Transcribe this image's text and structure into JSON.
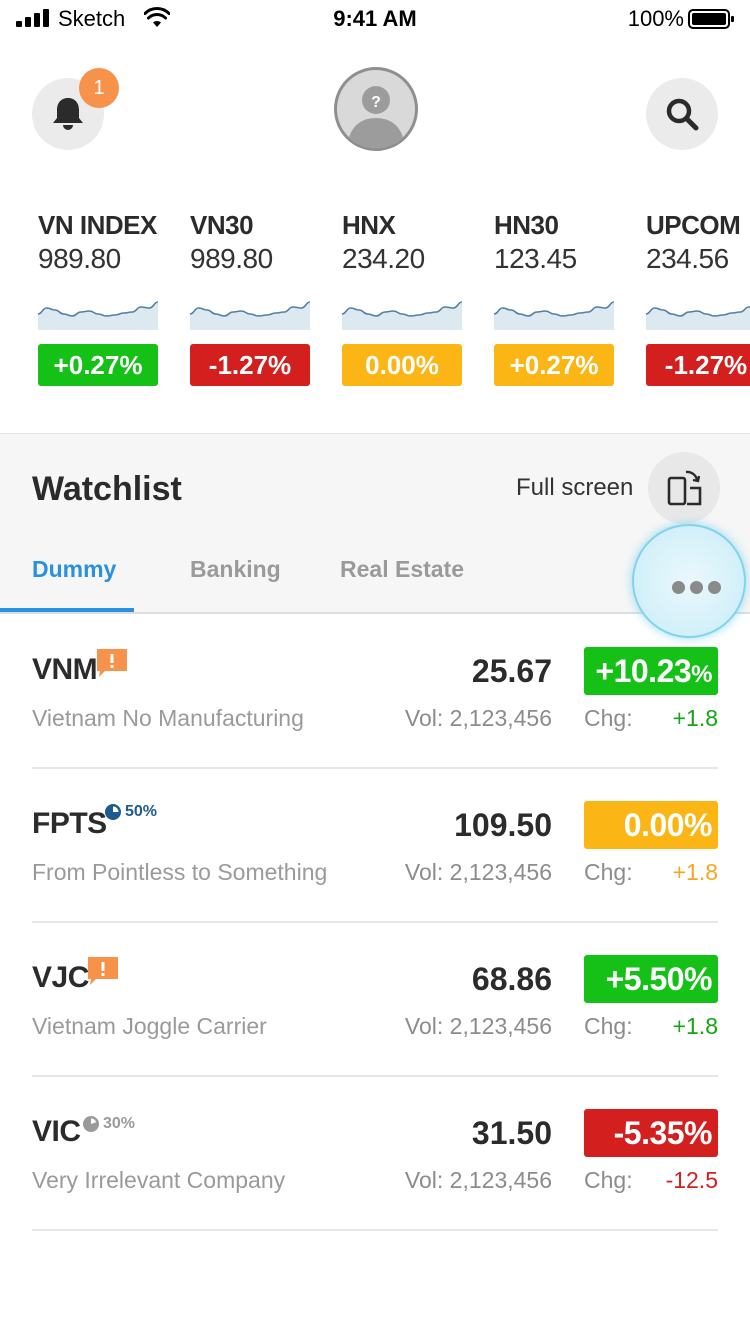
{
  "status_bar": {
    "carrier": "Sketch",
    "time": "9:41 AM",
    "battery": "100%"
  },
  "header": {
    "notification_count": "1",
    "avatar_label": "?"
  },
  "colors": {
    "green": "#15c116",
    "red": "#d41f1f",
    "amber": "#fbb514",
    "text_green": "#15a515",
    "text_red": "#d41f1f",
    "text_amber": "#f5a623",
    "accent_blue": "#2a90e0"
  },
  "indices": [
    {
      "name": "VN INDEX",
      "value": "989.80",
      "change": "+0.27%",
      "status": "green"
    },
    {
      "name": "VN30",
      "value": "989.80",
      "change": "-1.27%",
      "status": "red"
    },
    {
      "name": "HNX",
      "value": "234.20",
      "change": "0.00%",
      "status": "amber"
    },
    {
      "name": "HN30",
      "value": "123.45",
      "change": "+0.27%",
      "status": "amber"
    },
    {
      "name": "UPCOM",
      "value": "234.56",
      "change": "-1.27%",
      "status": "red"
    }
  ],
  "watchlist": {
    "title": "Watchlist",
    "fullscreen_label": "Full screen",
    "tabs": [
      {
        "label": "Dummy",
        "active": true
      },
      {
        "label": "Banking",
        "active": false
      },
      {
        "label": "Real Estate",
        "active": false
      }
    ]
  },
  "stocks": [
    {
      "ticker": "VNM",
      "company": "Vietnam No Manufacturing",
      "price": "25.67",
      "volume": "Vol: 2,123,456",
      "change_pct": "+10.23",
      "change_unit": "%",
      "chg_label": "Chg:",
      "chg_value": "+1.8",
      "status": "green",
      "alert_icon": "alert-flag-icon"
    },
    {
      "ticker": "FPTS",
      "company": "From Pointless to Something",
      "price": "109.50",
      "volume": "Vol: 2,123,456",
      "change_pct": "0.00%",
      "change_unit": "",
      "chg_label": "Chg:",
      "chg_value": "+1.8",
      "status": "amber",
      "ownership": "50%",
      "ownership_color": "#1d5b8f"
    },
    {
      "ticker": "VJC",
      "company": "Vietnam Joggle Carrier",
      "price": "68.86",
      "volume": "Vol: 2,123,456",
      "change_pct": "+5.50%",
      "change_unit": "",
      "chg_label": "Chg:",
      "chg_value": "+1.8",
      "status": "green",
      "alert_icon": "alert-flag-icon"
    },
    {
      "ticker": "VIC",
      "company": "Very Irrelevant Company",
      "price": "31.50",
      "volume": "Vol: 2,123,456",
      "change_pct": "-5.35%",
      "change_unit": "",
      "chg_label": "Chg:",
      "chg_value": "-12.5",
      "status": "red",
      "ownership": "30%",
      "ownership_color": "#9a9a9a"
    }
  ]
}
